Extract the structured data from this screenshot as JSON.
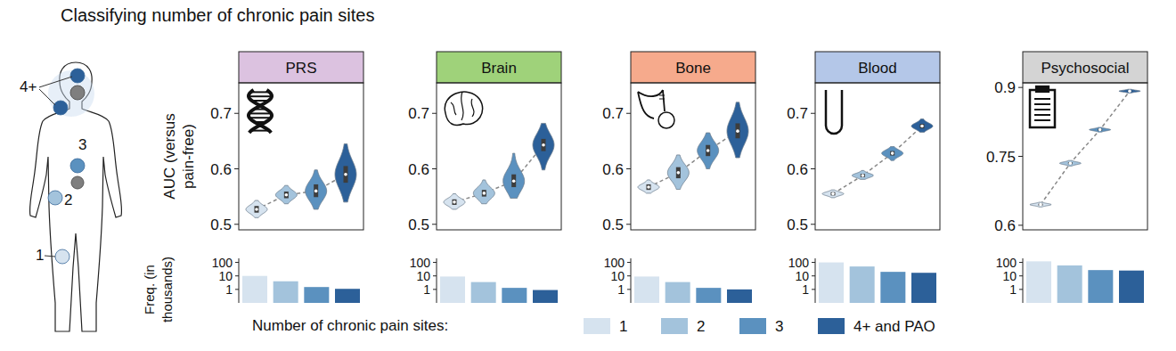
{
  "title": "Classifying number of chronic pain sites",
  "body_diagram": {
    "labels": [
      "4+",
      "3",
      "2",
      "1"
    ]
  },
  "color_legend": {
    "title": "Number of chronic pain sites:",
    "labels": [
      "1",
      "2",
      "3",
      "4+ and PAO"
    ],
    "colors": [
      "#d6e3ef",
      "#a3c3dc",
      "#5b91bf",
      "#2c6099"
    ]
  },
  "chart_data": [
    {
      "type": "violin",
      "title": "PRS",
      "ylabel": "AUC (versus pain-free)",
      "values": [
        0.527,
        0.553,
        0.56,
        0.59
      ],
      "q1": [
        0.521,
        0.547,
        0.549,
        0.575
      ],
      "q3": [
        0.533,
        0.559,
        0.572,
        0.605
      ],
      "min": [
        0.512,
        0.537,
        0.527,
        0.54
      ],
      "max": [
        0.543,
        0.57,
        0.598,
        0.645
      ],
      "colors": [
        "#d6e3ef",
        "#a3c3dc",
        "#5b91bf",
        "#2c6099"
      ],
      "ylim": [
        0.49,
        0.755
      ],
      "yticks": [
        0.5,
        0.6,
        0.7
      ],
      "line_style": "dashed",
      "tick_labels": "y"
    },
    {
      "type": "violin",
      "title": "Brain",
      "values": [
        0.54,
        0.556,
        0.578,
        0.643
      ],
      "q1": [
        0.535,
        0.55,
        0.567,
        0.632
      ],
      "q3": [
        0.545,
        0.562,
        0.59,
        0.654
      ],
      "min": [
        0.527,
        0.537,
        0.547,
        0.598
      ],
      "max": [
        0.555,
        0.58,
        0.628,
        0.682
      ],
      "colors": [
        "#d6e3ef",
        "#a3c3dc",
        "#5b91bf",
        "#2c6099"
      ],
      "ylim": [
        0.49,
        0.755
      ],
      "yticks": [
        0.5,
        0.6,
        0.7
      ],
      "line_style": "dashed",
      "tick_labels": "y"
    },
    {
      "type": "violin",
      "title": "Bone",
      "values": [
        0.567,
        0.593,
        0.633,
        0.668
      ],
      "q1": [
        0.562,
        0.583,
        0.623,
        0.655
      ],
      "q3": [
        0.572,
        0.603,
        0.643,
        0.682
      ],
      "min": [
        0.556,
        0.563,
        0.6,
        0.62
      ],
      "max": [
        0.58,
        0.625,
        0.665,
        0.72
      ],
      "colors": [
        "#d6e3ef",
        "#a3c3dc",
        "#5b91bf",
        "#2c6099"
      ],
      "ylim": [
        0.49,
        0.755
      ],
      "yticks": [
        0.5,
        0.6,
        0.7
      ],
      "line_style": "dashed",
      "tick_labels": "y"
    },
    {
      "type": "violin",
      "title": "Blood",
      "values": [
        0.555,
        0.588,
        0.628,
        0.677
      ],
      "q1": [
        0.552,
        0.585,
        0.624,
        0.673
      ],
      "q3": [
        0.558,
        0.591,
        0.632,
        0.681
      ],
      "min": [
        0.548,
        0.581,
        0.615,
        0.666
      ],
      "max": [
        0.562,
        0.597,
        0.64,
        0.69
      ],
      "colors": [
        "#d6e3ef",
        "#a3c3dc",
        "#5b91bf",
        "#2c6099"
      ],
      "ylim": [
        0.49,
        0.755
      ],
      "yticks": [
        0.5,
        0.6,
        0.7
      ],
      "line_style": "dashed",
      "tick_labels": "y"
    },
    {
      "type": "violin",
      "title": "Psychosocial",
      "values": [
        0.645,
        0.735,
        0.808,
        0.892
      ],
      "q1": [
        0.643,
        0.733,
        0.806,
        0.891
      ],
      "q3": [
        0.647,
        0.737,
        0.81,
        0.893
      ],
      "min": [
        0.64,
        0.729,
        0.803,
        0.888
      ],
      "max": [
        0.65,
        0.741,
        0.813,
        0.896
      ],
      "colors": [
        "#d6e3ef",
        "#a3c3dc",
        "#5b91bf",
        "#2c6099"
      ],
      "ylim": [
        0.59,
        0.91
      ],
      "yticks": [
        0.6,
        0.75,
        0.9
      ],
      "line_style": "dashed",
      "tick_labels": "y"
    },
    {
      "type": "bar",
      "ylabel": "Freq. (in thousands)",
      "values": [
        10,
        4,
        1.5,
        1.1
      ],
      "colors": [
        "#d6e3ef",
        "#a3c3dc",
        "#5b91bf",
        "#2c6099"
      ],
      "log": "y",
      "ylim": [
        0.1,
        200
      ],
      "yticks": [
        1,
        10,
        100
      ],
      "tick_labels": "y"
    },
    {
      "type": "bar",
      "values": [
        9,
        3.5,
        1.3,
        0.9
      ],
      "colors": [
        "#d6e3ef",
        "#a3c3dc",
        "#5b91bf",
        "#2c6099"
      ],
      "log": "y",
      "ylim": [
        0.1,
        200
      ],
      "yticks": [
        1,
        10,
        100
      ],
      "tick_labels": "y"
    },
    {
      "type": "bar",
      "values": [
        9,
        3.5,
        1.3,
        1.0
      ],
      "colors": [
        "#d6e3ef",
        "#a3c3dc",
        "#5b91bf",
        "#2c6099"
      ],
      "log": "y",
      "ylim": [
        0.1,
        200
      ],
      "yticks": [
        1,
        10,
        100
      ],
      "tick_labels": "y"
    },
    {
      "type": "bar",
      "values": [
        100,
        50,
        20,
        17
      ],
      "colors": [
        "#d6e3ef",
        "#a3c3dc",
        "#5b91bf",
        "#2c6099"
      ],
      "log": "y",
      "ylim": [
        0.1,
        200
      ],
      "yticks": [
        1,
        10,
        100
      ],
      "tick_labels": "y"
    },
    {
      "type": "bar",
      "values": [
        120,
        60,
        27,
        25
      ],
      "colors": [
        "#d6e3ef",
        "#a3c3dc",
        "#5b91bf",
        "#2c6099"
      ],
      "log": "y",
      "ylim": [
        0.1,
        200
      ],
      "yticks": [
        1,
        10,
        100
      ],
      "tick_labels": "y"
    }
  ]
}
